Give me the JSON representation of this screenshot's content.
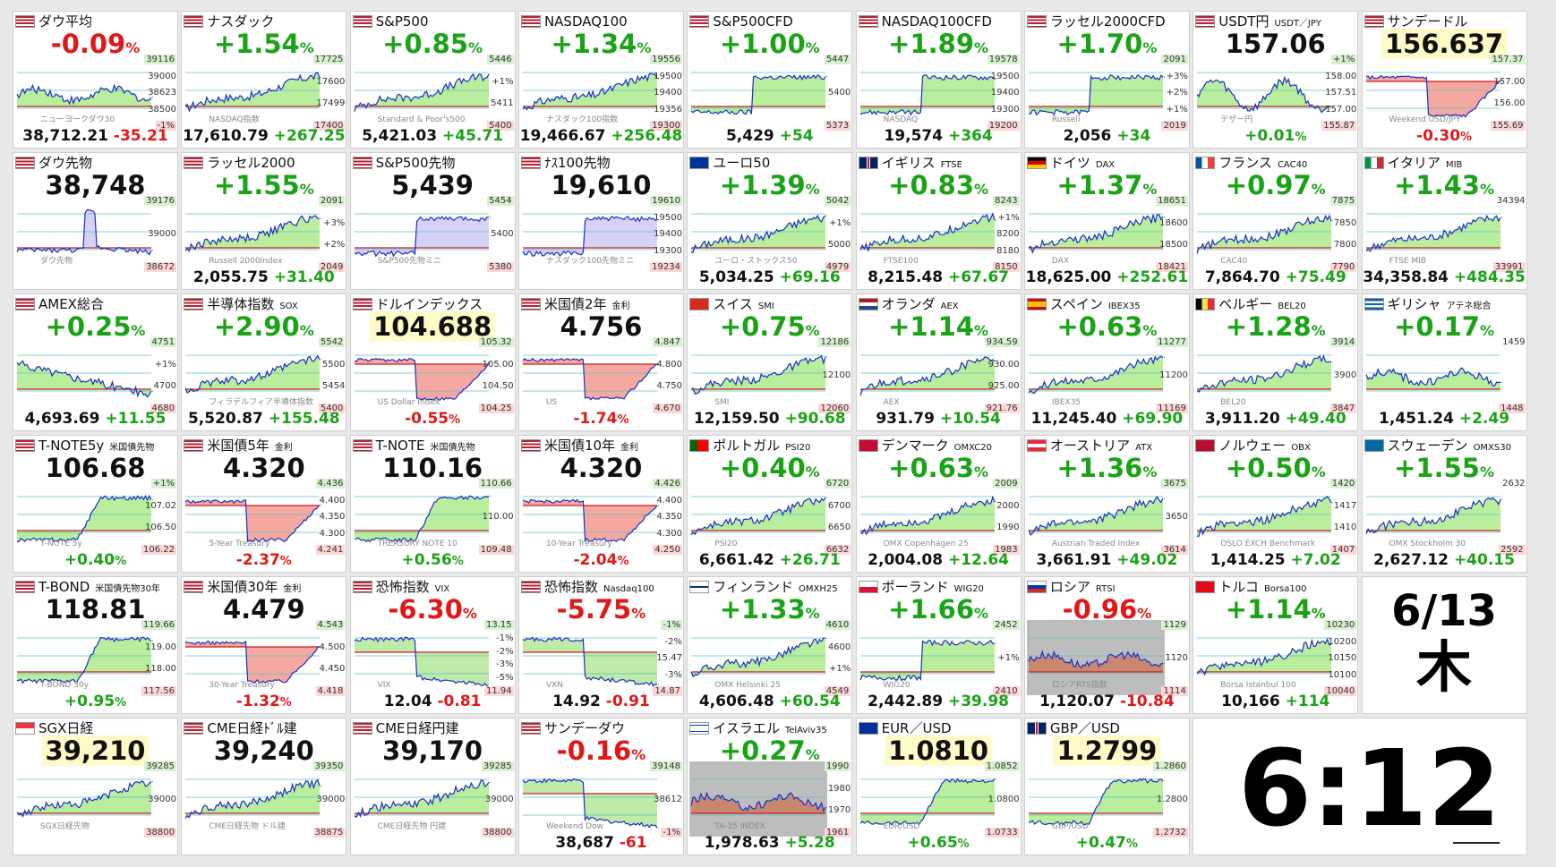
{
  "date": {
    "md": "6/13",
    "weekday": "木"
  },
  "time": "6:12",
  "tiles": [
    {
      "name": "ダウ平均",
      "flag": "us",
      "big": "-0.09",
      "dir": "dn",
      "ticks": [
        "39116",
        "39000",
        "38623",
        "38500",
        "-1%"
      ],
      "foot": "38,712.21",
      "chg": "-35.21",
      "wm": "ニューヨークダウ30",
      "shape": "flat"
    },
    {
      "name": "ナスダック",
      "flag": "us",
      "big": "+1.54",
      "dir": "up",
      "ticks": [
        "17725",
        "17600",
        "17499",
        "17400"
      ],
      "foot": "17,610.79",
      "chg": "+267.25",
      "wm": "NASDAQ指数",
      "shape": "up"
    },
    {
      "name": "S&P500",
      "flag": "us",
      "big": "+0.85",
      "dir": "up",
      "ticks": [
        "5446",
        "+1%",
        "5411",
        "5400"
      ],
      "foot": "5,421.03",
      "chg": "+45.71",
      "wm": "Standard & Poor's500",
      "shape": "up"
    },
    {
      "name": "NASDAQ100",
      "flag": "us",
      "big": "+1.34",
      "dir": "up",
      "ticks": [
        "19556",
        "19500",
        "19400",
        "19356",
        "19300"
      ],
      "foot": "19,466.67",
      "chg": "+256.48",
      "wm": "ナスダック100指数",
      "shape": "up"
    },
    {
      "name": "S&P500CFD",
      "flag": "us",
      "big": "+1.00",
      "dir": "up",
      "ticks": [
        "5447",
        "5400",
        "5373"
      ],
      "foot": "5,429",
      "chg": "+54",
      "wm": "",
      "shape": "step"
    },
    {
      "name": "NASDAQ100CFD",
      "flag": "us",
      "big": "+1.89",
      "dir": "up",
      "ticks": [
        "19578",
        "19500",
        "19400",
        "19300",
        "19200"
      ],
      "foot": "19,574",
      "chg": "+364",
      "wm": "NASDAQ",
      "shape": "step"
    },
    {
      "name": "ラッセル2000CFD",
      "flag": "us",
      "big": "+1.70",
      "dir": "up",
      "ticks": [
        "2091",
        "+3%",
        "+2%",
        "+1%",
        "2019"
      ],
      "foot": "2,056",
      "chg": "+34",
      "wm": "Russell",
      "shape": "step"
    },
    {
      "name": "USDT円",
      "sub": "USDT／JPY",
      "flag": "us",
      "big": "157.06",
      "dir": "nt",
      "ticks": [
        "+1%",
        "158.00",
        "157.51",
        "157.00",
        "155.87"
      ],
      "foot": "+0.01",
      "chg": "",
      "wm": "テザー円",
      "shape": "mixed"
    },
    {
      "name": "サンデードル",
      "flag": "us",
      "big": "156.637",
      "dir": "nt",
      "hl": true,
      "ticks": [
        "157.37",
        "157.00",
        "156.00",
        "155.69"
      ],
      "foot": "-0.30",
      "chg": "",
      "wm": "Weekend USD/JPY",
      "shape": "dip"
    },
    {
      "name": "ダウ先物",
      "flag": "us",
      "big": "38,748",
      "dir": "nt",
      "ticks": [
        "39176",
        "39000",
        "38672"
      ],
      "foot": "",
      "chg": "",
      "wm": "ダウ先物",
      "shape": "spike"
    },
    {
      "name": "ラッセル2000",
      "flag": "us",
      "big": "+1.55",
      "dir": "up",
      "ticks": [
        "2091",
        "+3%",
        "+2%",
        "2049"
      ],
      "foot": "2,055.75",
      "chg": "+31.40",
      "wm": "Russell 2000Index",
      "shape": "up"
    },
    {
      "name": "S&P500先物",
      "flag": "us",
      "big": "5,439",
      "dir": "nt",
      "ticks": [
        "5454",
        "5400",
        "5380"
      ],
      "foot": "",
      "chg": "",
      "wm": "S&P500先物ミニ",
      "shape": "step"
    },
    {
      "name": "ﾅｽ100先物",
      "flag": "us",
      "big": "19,610",
      "dir": "nt",
      "ticks": [
        "19610",
        "19500",
        "19400",
        "19300",
        "19234"
      ],
      "foot": "",
      "chg": "",
      "wm": "ナスダック100先物ミニ",
      "shape": "step"
    },
    {
      "name": "ユーロ50",
      "flag": "eu",
      "big": "+1.39",
      "dir": "up",
      "ticks": [
        "5042",
        "+1%",
        "5000",
        "4979"
      ],
      "foot": "5,034.25",
      "chg": "+69.16",
      "wm": "ユーロ・ストックス50",
      "shape": "up"
    },
    {
      "name": "イギリス",
      "sub": "FTSE",
      "flag": "gb",
      "big": "+0.83",
      "dir": "up",
      "ticks": [
        "8243",
        "+1%",
        "8200",
        "8180",
        "8150"
      ],
      "foot": "8,215.48",
      "chg": "+67.67",
      "wm": "FTSE100",
      "shape": "up"
    },
    {
      "name": "ドイツ",
      "sub": "DAX",
      "flag": "de",
      "big": "+1.37",
      "dir": "up",
      "ticks": [
        "18651",
        "18600",
        "18500",
        "18421"
      ],
      "foot": "18,625.00",
      "chg": "+252.61",
      "wm": "DAX",
      "shape": "up"
    },
    {
      "name": "フランス",
      "sub": "CAC40",
      "flag": "fr",
      "big": "+0.97",
      "dir": "up",
      "ticks": [
        "7875",
        "7850",
        "7800",
        "7790"
      ],
      "foot": "7,864.70",
      "chg": "+75.49",
      "wm": "CAC40",
      "shape": "up"
    },
    {
      "name": "イタリア",
      "sub": "MIB",
      "flag": "it",
      "big": "+1.43",
      "dir": "up",
      "ticks": [
        "34394",
        "33991"
      ],
      "foot": "34,358.84",
      "chg": "+484.35",
      "wm": "FTSE MIB",
      "shape": "up"
    },
    {
      "name": "AMEX総合",
      "flag": "us",
      "big": "+0.25",
      "dir": "up",
      "ticks": [
        "4751",
        "+1%",
        "4700",
        "4680"
      ],
      "foot": "4,693.69",
      "chg": "+11.55",
      "wm": "",
      "shape": "down"
    },
    {
      "name": "半導体指数",
      "sub": "SOX",
      "flag": "us",
      "big": "+2.90",
      "dir": "up",
      "ticks": [
        "5542",
        "5500",
        "5454",
        "5400"
      ],
      "foot": "5,520.87",
      "chg": "+155.48",
      "wm": "フィラデルフィア半導体指数",
      "shape": "up"
    },
    {
      "name": "ドルインデックス",
      "flag": "us",
      "big": "104.688",
      "dir": "nt",
      "hl": true,
      "ticks": [
        "105.32",
        "105.00",
        "104.50",
        "104.25"
      ],
      "foot": "-0.55",
      "chg": "",
      "wm": "US Dollar Index",
      "shape": "dip"
    },
    {
      "name": "米国債2年",
      "sub": "金利",
      "flag": "us",
      "big": "4.756",
      "dir": "nt",
      "ticks": [
        "4.847",
        "4.800",
        "4.750",
        "4.670"
      ],
      "foot": "-1.74",
      "chg": "",
      "wm": "US",
      "shape": "dip"
    },
    {
      "name": "スイス",
      "sub": "SMI",
      "flag": "ch",
      "big": "+0.75",
      "dir": "up",
      "ticks": [
        "12186",
        "12100",
        "12060"
      ],
      "foot": "12,159.50",
      "chg": "+90.68",
      "wm": "SMI",
      "shape": "up"
    },
    {
      "name": "オランダ",
      "sub": "AEX",
      "flag": "nl",
      "big": "+1.14",
      "dir": "up",
      "ticks": [
        "934.59",
        "930.00",
        "925.00",
        "921.76"
      ],
      "foot": "931.79",
      "chg": "+10.54",
      "wm": "AEX",
      "shape": "up"
    },
    {
      "name": "スペイン",
      "sub": "IBEX35",
      "flag": "es",
      "big": "+0.63",
      "dir": "up",
      "ticks": [
        "11277",
        "11200",
        "11169"
      ],
      "foot": "11,245.40",
      "chg": "+69.90",
      "wm": "IBEX35",
      "shape": "up"
    },
    {
      "name": "ベルギー",
      "sub": "BEL20",
      "flag": "be",
      "big": "+1.28",
      "dir": "up",
      "ticks": [
        "3914",
        "3900",
        "3847"
      ],
      "foot": "3,911.20",
      "chg": "+49.40",
      "wm": "BEL20",
      "shape": "up"
    },
    {
      "name": "ギリシャ",
      "sub": "アテネ総合",
      "flag": "gr",
      "big": "+0.17",
      "dir": "up",
      "ticks": [
        "1459",
        "1448"
      ],
      "foot": "1,451.24",
      "chg": "+2.49",
      "wm": "",
      "shape": "flat"
    },
    {
      "name": "T-NOTE5y",
      "sub": "米国債先物",
      "flag": "us",
      "big": "106.68",
      "dir": "nt",
      "ticks": [
        "+1%",
        "107.02",
        "106.50",
        "106.22"
      ],
      "foot": "+0.40",
      "chg": "",
      "wm": "T-NOTE 5y",
      "shape": "rise"
    },
    {
      "name": "米国債5年",
      "sub": "金利",
      "flag": "us",
      "big": "4.320",
      "dir": "nt",
      "ticks": [
        "4.436",
        "4.400",
        "4.350",
        "4.300",
        "4.241"
      ],
      "foot": "-2.37",
      "chg": "",
      "wm": "5-Year Treasury",
      "shape": "dip"
    },
    {
      "name": "T-NOTE",
      "sub": "米国債先物",
      "flag": "us",
      "big": "110.16",
      "dir": "nt",
      "ticks": [
        "110.66",
        "110.00",
        "109.48"
      ],
      "foot": "+0.56",
      "chg": "",
      "wm": "TREASURY NOTE 10",
      "shape": "rise"
    },
    {
      "name": "米国債10年",
      "sub": "金利",
      "flag": "us",
      "big": "4.320",
      "dir": "nt",
      "ticks": [
        "4.426",
        "4.400",
        "4.350",
        "4.300",
        "4.250"
      ],
      "foot": "-2.04",
      "chg": "",
      "wm": "10-Year Treasury",
      "shape": "dip"
    },
    {
      "name": "ポルトガル",
      "sub": "PSI20",
      "flag": "pt",
      "big": "+0.40",
      "dir": "up",
      "ticks": [
        "6720",
        "6700",
        "6650",
        "6632"
      ],
      "foot": "6,661.42",
      "chg": "+26.71",
      "wm": "PSI20",
      "shape": "up"
    },
    {
      "name": "デンマーク",
      "sub": "OMXC20",
      "flag": "dk",
      "big": "+0.63",
      "dir": "up",
      "ticks": [
        "2009",
        "2000",
        "1990",
        "1983"
      ],
      "foot": "2,004.08",
      "chg": "+12.64",
      "wm": "OMX Copenhagen 25",
      "shape": "up"
    },
    {
      "name": "オーストリア",
      "sub": "ATX",
      "flag": "at",
      "big": "+1.36",
      "dir": "up",
      "ticks": [
        "3675",
        "3650",
        "3614"
      ],
      "foot": "3,661.91",
      "chg": "+49.02",
      "wm": "Austrian Traded Index",
      "shape": "up"
    },
    {
      "name": "ノルウェー",
      "sub": "OBX",
      "flag": "no",
      "big": "+0.50",
      "dir": "up",
      "ticks": [
        "1420",
        "1417",
        "1410",
        "1407"
      ],
      "foot": "1,414.25",
      "chg": "+7.02",
      "wm": "OSLO EXCH Benchmark",
      "shape": "up"
    },
    {
      "name": "スウェーデン",
      "sub": "OMXS30",
      "flag": "se",
      "big": "+1.55",
      "dir": "up",
      "ticks": [
        "2632",
        "2592"
      ],
      "foot": "2,627.12",
      "chg": "+40.15",
      "wm": "OMX Stockholm 30",
      "shape": "up"
    },
    {
      "name": "T-BOND",
      "sub": "米国債先物30年",
      "flag": "us",
      "big": "118.81",
      "dir": "nt",
      "ticks": [
        "119.66",
        "119.00",
        "118.00",
        "117.56"
      ],
      "foot": "+0.95",
      "chg": "",
      "wm": "T-BOND 30y",
      "shape": "rise"
    },
    {
      "name": "米国債30年",
      "sub": "金利",
      "flag": "us",
      "big": "4.479",
      "dir": "nt",
      "ticks": [
        "4.543",
        "4.500",
        "4.450",
        "4.418"
      ],
      "foot": "-1.32",
      "chg": "",
      "wm": "30-Year Treasury",
      "shape": "dip"
    },
    {
      "name": "恐怖指数",
      "sub": "VIX",
      "flag": "us",
      "big": "-6.30",
      "dir": "dn",
      "ticks": [
        "13.15",
        "-1%",
        "-2%",
        "-3%",
        "-5%",
        "11.94"
      ],
      "foot": "12.04",
      "chg": "-0.81",
      "wm": "VIX",
      "shape": "fall"
    },
    {
      "name": "恐怖指数",
      "sub": "Nasdaq100",
      "flag": "us",
      "big": "-5.75",
      "dir": "dn",
      "ticks": [
        "-1%",
        "-2%",
        "15.47",
        "-3%",
        "14.87"
      ],
      "foot": "14.92",
      "chg": "-0.91",
      "wm": "VXN",
      "shape": "fall"
    },
    {
      "name": "フィンランド",
      "sub": "OMXH25",
      "flag": "fi",
      "big": "+1.33",
      "dir": "up",
      "ticks": [
        "4610",
        "4600",
        "+1%",
        "4549"
      ],
      "foot": "4,606.48",
      "chg": "+60.54",
      "wm": "OMX Helsinki 25",
      "shape": "up"
    },
    {
      "name": "ポーランド",
      "sub": "WIG20",
      "flag": "pl",
      "big": "+1.66",
      "dir": "up",
      "ticks": [
        "2452",
        "+1%",
        "2410"
      ],
      "foot": "2,442.89",
      "chg": "+39.98",
      "wm": "WIG20",
      "shape": "step"
    },
    {
      "name": "ロシア",
      "sub": "RTSI",
      "flag": "ru",
      "big": "-0.96",
      "dir": "dn",
      "ticks": [
        "1129",
        "1120",
        "1114"
      ],
      "foot": "1,120.07",
      "chg": "-10.84",
      "wm": "ロシアRTS指数",
      "shape": "flat",
      "grey": true
    },
    {
      "name": "トルコ",
      "sub": "Borsa100",
      "flag": "tr",
      "big": "+1.14",
      "dir": "up",
      "ticks": [
        "10230",
        "10200",
        "10150",
        "10100",
        "10040"
      ],
      "foot": "10,166",
      "chg": "+114",
      "wm": "Borsa Istanbul 100",
      "shape": "up"
    },
    {
      "name": "SGX日経",
      "flag": "sg",
      "big": "39,210",
      "dir": "nt",
      "hl": true,
      "ticks": [
        "39285",
        "39000",
        "38800"
      ],
      "foot": "",
      "chg": "",
      "wm": "SGX日経先物",
      "shape": "up"
    },
    {
      "name": "CME日経ﾄﾞﾙ建",
      "flag": "us",
      "big": "39,240",
      "dir": "nt",
      "ticks": [
        "39350",
        "39000",
        "38875"
      ],
      "foot": "",
      "chg": "",
      "wm": "CME日経先物 ドル建",
      "shape": "up"
    },
    {
      "name": "CME日経円建",
      "flag": "us",
      "big": "39,170",
      "dir": "nt",
      "ticks": [
        "39285",
        "39000",
        "38800"
      ],
      "foot": "",
      "chg": "",
      "wm": "CME日経先物 円建",
      "shape": "up"
    },
    {
      "name": "サンデーダウ",
      "flag": "us",
      "big": "-0.16",
      "dir": "dn",
      "ticks": [
        "39148",
        "38612",
        "-1%"
      ],
      "foot": "38,687",
      "chg": "-61",
      "wm": "Weekend Dow",
      "shape": "fall"
    },
    {
      "name": "イスラエル",
      "sub": "TelAviv35",
      "flag": "il",
      "big": "+0.27",
      "dir": "up",
      "ticks": [
        "1990",
        "1980",
        "1970",
        "1961"
      ],
      "foot": "1,978.63",
      "chg": "+5.28",
      "wm": "TA-35 INDEX",
      "shape": "flat",
      "grey": true
    },
    {
      "name": "EUR／USD",
      "flag": "eu",
      "big": "1.0810",
      "dir": "nt",
      "hl": true,
      "ticks": [
        "1.0852",
        "1.0800",
        "1.0733"
      ],
      "foot": "+0.65",
      "chg": "",
      "wm": "EUR/USD",
      "shape": "rise"
    },
    {
      "name": "GBP／USD",
      "flag": "gb",
      "big": "1.2799",
      "dir": "nt",
      "hl": true,
      "ticks": [
        "1.2860",
        "1.2800",
        "1.2732"
      ],
      "foot": "+0.47",
      "chg": "",
      "wm": "GBP/USD",
      "shape": "rise"
    }
  ]
}
